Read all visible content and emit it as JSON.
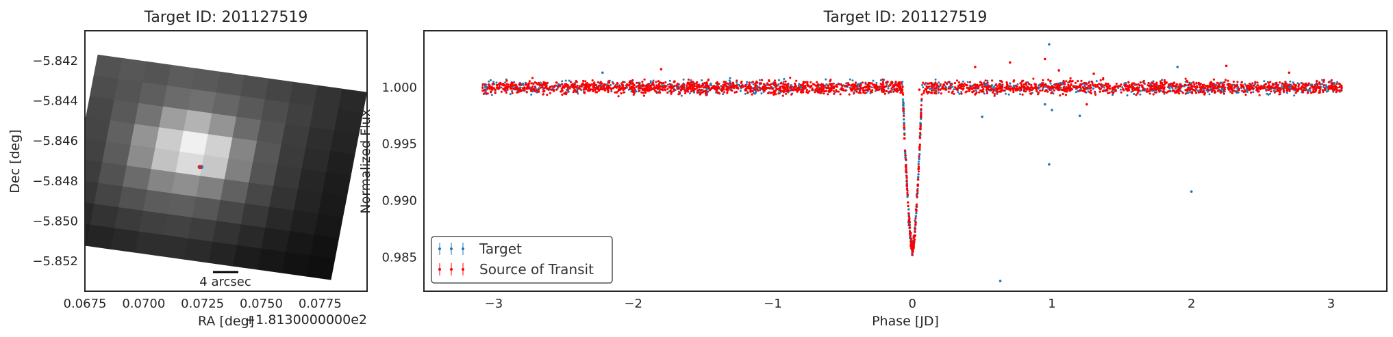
{
  "chart_data": [
    {
      "type": "heatmap",
      "title": "Target ID: 201127519",
      "xlabel": "RA [deg]",
      "ylabel": "Dec [deg]",
      "x_offset_text": "+1.8130000000e2",
      "xlim": [
        0.0675,
        0.0795
      ],
      "ylim": [
        -5.8535,
        -5.8405
      ],
      "x_ticks": [
        0.0675,
        0.07,
        0.0725,
        0.075,
        0.0775
      ],
      "x_tick_labels": [
        "0.0675",
        "0.0700",
        "0.0725",
        "0.0750",
        "0.0775"
      ],
      "y_ticks": [
        -5.842,
        -5.844,
        -5.846,
        -5.848,
        -5.85,
        -5.852
      ],
      "y_tick_labels": [
        "−5.842",
        "−5.844",
        "−5.846",
        "−5.848",
        "−5.850",
        "−5.852"
      ],
      "scalebar_label": "4 arcsec",
      "colormap": "gray",
      "grid_origin": [
        0.06805,
        -5.8417
      ],
      "col_vector": [
        0.00104,
        -0.00017
      ],
      "row_vector": [
        -0.00017,
        -0.00104
      ],
      "pixel_values": [
        [
          0.32,
          0.34,
          0.33,
          0.36,
          0.35,
          0.33,
          0.3,
          0.27,
          0.24,
          0.2,
          0.16
        ],
        [
          0.3,
          0.33,
          0.37,
          0.42,
          0.44,
          0.4,
          0.35,
          0.3,
          0.25,
          0.2,
          0.15
        ],
        [
          0.28,
          0.35,
          0.45,
          0.62,
          0.7,
          0.58,
          0.42,
          0.32,
          0.24,
          0.18,
          0.14
        ],
        [
          0.27,
          0.38,
          0.58,
          0.8,
          0.94,
          0.82,
          0.52,
          0.34,
          0.23,
          0.17,
          0.12
        ],
        [
          0.26,
          0.36,
          0.55,
          0.76,
          0.86,
          0.78,
          0.5,
          0.33,
          0.22,
          0.15,
          0.11
        ],
        [
          0.24,
          0.32,
          0.42,
          0.52,
          0.56,
          0.5,
          0.38,
          0.28,
          0.2,
          0.14,
          0.1
        ],
        [
          0.21,
          0.27,
          0.32,
          0.36,
          0.37,
          0.34,
          0.28,
          0.22,
          0.16,
          0.12,
          0.09
        ],
        [
          0.16,
          0.2,
          0.23,
          0.25,
          0.26,
          0.24,
          0.2,
          0.16,
          0.12,
          0.09,
          0.07
        ],
        [
          0.12,
          0.14,
          0.16,
          0.18,
          0.18,
          0.17,
          0.14,
          0.11,
          0.09,
          0.07,
          0.06
        ]
      ],
      "markers": [
        {
          "name": "Target",
          "x": 0.07245,
          "y": -5.8473,
          "color": "#1f77b4"
        },
        {
          "name": "Source of Transit",
          "x": 0.07238,
          "y": -5.8473,
          "color": "#d62728"
        }
      ]
    },
    {
      "type": "scatter",
      "title": "Target ID: 201127519",
      "xlabel": "Phase [JD]",
      "ylabel": "Normalized Flux",
      "xlim": [
        -3.5,
        3.4
      ],
      "ylim": [
        0.982,
        1.005
      ],
      "x_ticks": [
        -3,
        -2,
        -1,
        0,
        1,
        2,
        3
      ],
      "x_tick_labels": [
        "−3",
        "−2",
        "−1",
        "0",
        "1",
        "2",
        "3"
      ],
      "y_ticks": [
        0.985,
        0.99,
        0.995,
        1.0
      ],
      "y_tick_labels": [
        "0.985",
        "0.990",
        "0.995",
        "1.000"
      ],
      "legend_position": "lower-left",
      "baseline": 1.0,
      "phase_range": [
        -3.08,
        3.08
      ],
      "transit": {
        "center": 0.0,
        "half_width": 0.07,
        "depth": 0.0145
      },
      "series": [
        {
          "name": "Target",
          "color": "#1f77b4",
          "outliers": [
            [
              0.0,
              0.9852
            ],
            [
              0.63,
              0.9829
            ],
            [
              0.98,
              1.0038
            ],
            [
              0.98,
              0.9932
            ],
            [
              1.0,
              0.998
            ],
            [
              2.0,
              0.9908
            ],
            [
              -2.22,
              1.0013
            ],
            [
              1.9,
              1.0018
            ],
            [
              0.95,
              0.9985
            ],
            [
              1.2,
              0.9975
            ],
            [
              0.5,
              0.9974
            ]
          ]
        },
        {
          "name": "Source of Transit",
          "color": "#ff0000",
          "outliers": [
            [
              0.95,
              1.0025
            ],
            [
              0.7,
              1.0022
            ],
            [
              0.45,
              1.0018
            ],
            [
              1.05,
              1.0015
            ],
            [
              -1.8,
              1.0016
            ],
            [
              2.25,
              1.0019
            ],
            [
              1.25,
              0.9985
            ],
            [
              0.05,
              0.9998
            ],
            [
              2.7,
              1.0013
            ],
            [
              1.3,
              1.0012
            ]
          ]
        }
      ]
    }
  ]
}
